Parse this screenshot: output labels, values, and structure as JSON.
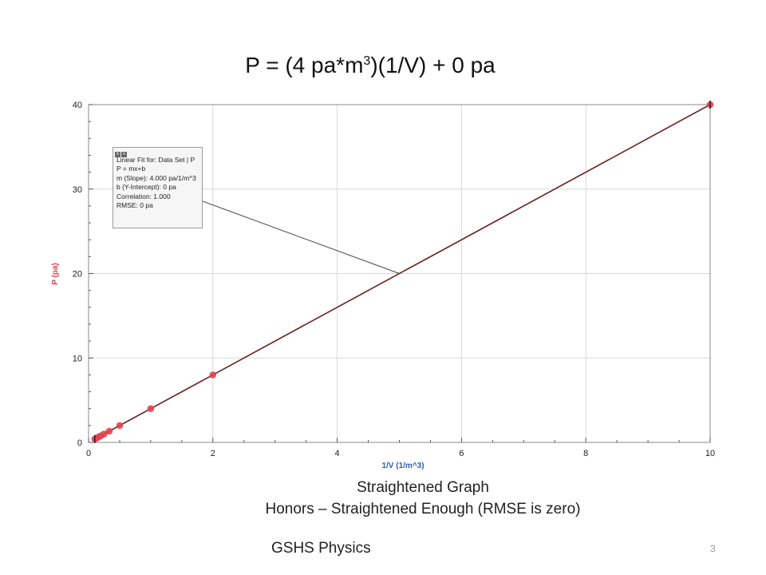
{
  "title": {
    "prefix": "P = (4 pa*m",
    "exponent": "3",
    "suffix": ")(1/V) + 0 pa"
  },
  "fit_box": {
    "controls": [
      "x",
      "s"
    ],
    "lines": [
      "Linear Fit for: Data Set | P",
      "P = mx+b",
      "m (Slope): 4.000 pa/1/m^3",
      "b (Y-Intercept): 0 pa",
      "Correlation: 1.000",
      "RMSE: 0 pa"
    ]
  },
  "captions": {
    "line1": "Straightened Graph",
    "line2": "Honors – Straightened Enough (RMSE is zero)"
  },
  "footer": "GSHS Physics",
  "page_number": "3",
  "colors": {
    "points": "#e0444f",
    "fit_line": "#6b1f1f",
    "ylabel": "#e0444f",
    "xlabel": "#2d5fb6",
    "grid": "#d9d9d9"
  },
  "chart_data": {
    "type": "scatter",
    "xlabel": "1/V (1/m^3)",
    "ylabel": "P (pa)",
    "xlim": [
      0,
      10
    ],
    "ylim": [
      0,
      40
    ],
    "xticks": [
      0,
      2,
      4,
      6,
      8,
      10
    ],
    "yticks": [
      0,
      10,
      20,
      30,
      40
    ],
    "grid": true,
    "series": [
      {
        "points": [
          {
            "x": 0.1,
            "y": 0.4
          },
          {
            "x": 0.125,
            "y": 0.5
          },
          {
            "x": 0.143,
            "y": 0.57
          },
          {
            "x": 0.167,
            "y": 0.67
          },
          {
            "x": 0.2,
            "y": 0.8
          },
          {
            "x": 0.25,
            "y": 1.0
          },
          {
            "x": 0.333,
            "y": 1.33
          },
          {
            "x": 0.5,
            "y": 2.0
          },
          {
            "x": 1.0,
            "y": 4.0
          },
          {
            "x": 2.0,
            "y": 8.0
          },
          {
            "x": 10.0,
            "y": 40.0
          }
        ]
      }
    ],
    "fit": {
      "slope": 4.0,
      "intercept": 0.0,
      "x_range": [
        0.1,
        10
      ]
    },
    "fit_label_anchor": {
      "x": 5.0,
      "y": 20.0
    }
  }
}
